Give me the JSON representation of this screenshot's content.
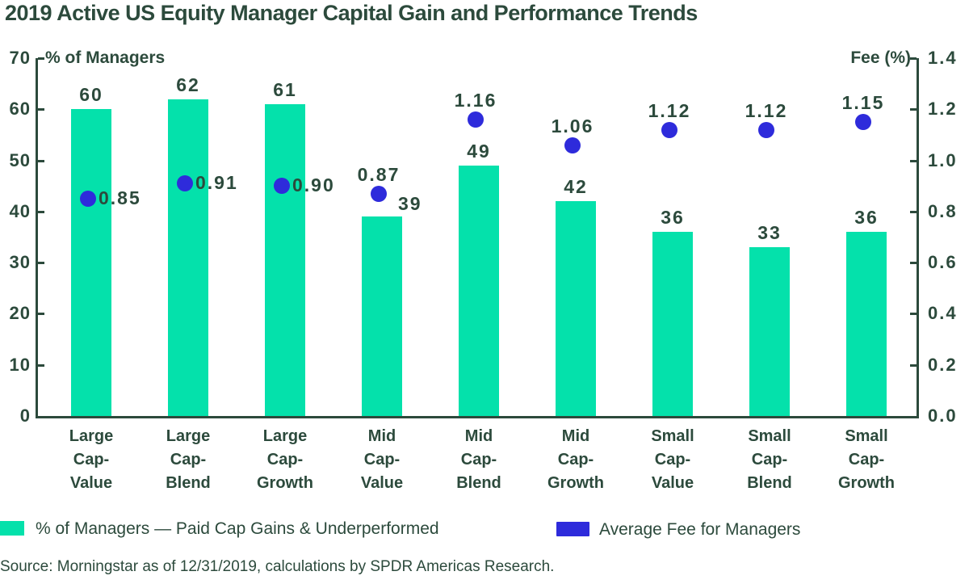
{
  "title": "2019 Active US Equity Manager Capital Gain and Performance Trends",
  "left_axis": {
    "label": "% of Managers",
    "tick_labels": [
      "0",
      "10",
      "20",
      "30",
      "40",
      "50",
      "60",
      "70"
    ],
    "min": 0,
    "max": 70
  },
  "right_axis": {
    "label": "Fee (%)",
    "tick_labels": [
      "0.0",
      "0.2",
      "0.4",
      "0.6",
      "0.8",
      "1.0",
      "1.2",
      "1.4"
    ],
    "min": 0.0,
    "max": 1.4
  },
  "chart_data": {
    "type": "bar",
    "categories": [
      "Large\nCap-\nValue",
      "Large\nCap-\nBlend",
      "Large\nCap-\nGrowth",
      "Mid\nCap-\nValue",
      "Mid\nCap-\nBlend",
      "Mid\nCap-\nGrowth",
      "Small\nCap-\nValue",
      "Small\nCap-\nBlend",
      "Small\nCap-\nGrowth"
    ],
    "title": "2019 Active US Equity Manager Capital Gain and Performance Trends",
    "grid": false,
    "legend_position": "bottom",
    "ylim_left": [
      0,
      70
    ],
    "ylim_right": [
      0.0,
      1.4
    ],
    "series": [
      {
        "name": "% of Managers — Paid Cap Gains & Underperformed",
        "type": "bar",
        "axis": "left",
        "color": "#04E1AB",
        "values": [
          60,
          62,
          61,
          39,
          49,
          42,
          36,
          33,
          36
        ],
        "value_labels": [
          "60",
          "62",
          "61",
          "39",
          "49",
          "42",
          "36",
          "33",
          "36"
        ],
        "label_pos": [
          "above",
          "above",
          "above",
          "beside-dot",
          "above",
          "above",
          "above",
          "above",
          "above"
        ]
      },
      {
        "name": "Average Fee for Managers",
        "type": "scatter",
        "axis": "right",
        "color": "#2E2BDB",
        "values": [
          0.85,
          0.91,
          0.9,
          0.87,
          1.16,
          1.06,
          1.12,
          1.12,
          1.15
        ],
        "value_labels": [
          "0.85",
          "0.91",
          "0.90",
          "0.87",
          "1.16",
          "1.06",
          "1.12",
          "1.12",
          "1.15"
        ],
        "label_pos": [
          "right",
          "right",
          "right",
          "above",
          "above",
          "above",
          "above",
          "above",
          "above"
        ]
      }
    ]
  },
  "legend": {
    "items": [
      {
        "label": "% of Managers — Paid Cap Gains & Underperformed",
        "color": "#04E1AB"
      },
      {
        "label": "Average Fee for Managers",
        "color": "#2E2BDB"
      }
    ]
  },
  "source": "Source: Morningstar as of 12/31/2019, calculations by SPDR Americas Research.",
  "colors": {
    "text_dark_green": "#2C4A3C",
    "bar_teal": "#04E1AB",
    "dot_blue": "#2E2BDB",
    "background": "#FFFFFF"
  }
}
